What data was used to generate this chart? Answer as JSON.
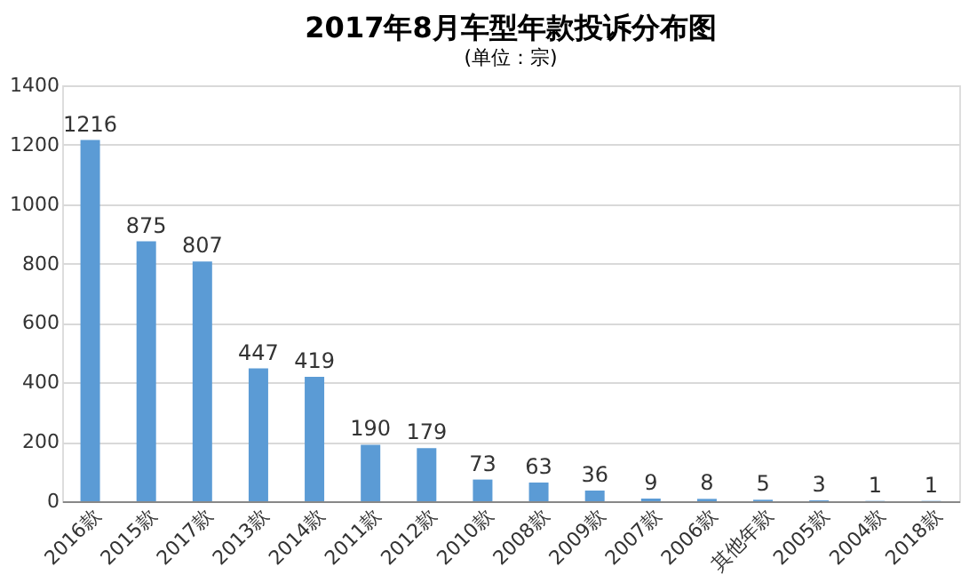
{
  "chart_data": {
    "type": "bar",
    "title": "2017年8月车型年款投诉分布图",
    "subtitle": "(单位：宗)",
    "categories": [
      "2016款",
      "2015款",
      "2017款",
      "2013款",
      "2014款",
      "2011款",
      "2012款",
      "2010款",
      "2008款",
      "2009款",
      "2007款",
      "2006款",
      "其他年款",
      "2005款",
      "2004款",
      "2018款"
    ],
    "values": [
      1216,
      875,
      807,
      447,
      419,
      190,
      179,
      73,
      63,
      36,
      9,
      8,
      5,
      3,
      1,
      1
    ],
    "color": "#5b9bd5",
    "ylim": [
      0,
      1400
    ],
    "yticks": [
      0,
      200,
      400,
      600,
      800,
      1000,
      1200,
      1400
    ],
    "grid": "y",
    "data_labels": true
  }
}
